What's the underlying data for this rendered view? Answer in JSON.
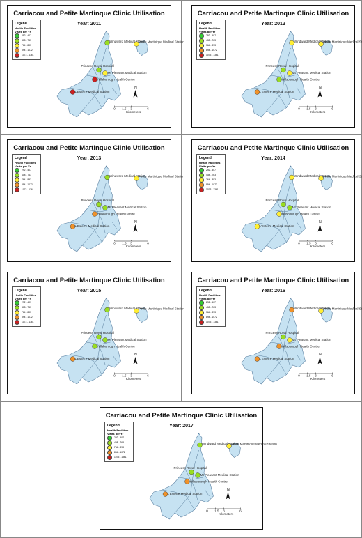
{
  "title": "Carriacou and Petite Martinque Clinic Utilisation",
  "year_prefix": "Year: ",
  "legend": {
    "heading": "Legend",
    "subheading": "Health Facilities",
    "variable": "Visits per Yr",
    "classes": [
      {
        "label": "292 - 407",
        "color": "#33cc33"
      },
      {
        "label": "408 - 763",
        "color": "#99dd22"
      },
      {
        "label": "764 - 893",
        "color": "#ffee33"
      },
      {
        "label": "894 - 1072",
        "color": "#f0922a"
      },
      {
        "label": "1073 - 1361",
        "color": "#cc2020"
      }
    ]
  },
  "scale_bar": {
    "ticks": [
      "0",
      "1.5",
      "3",
      "6"
    ],
    "unit": "Kilometers"
  },
  "north_label": "N",
  "facility_names": [
    "Windward Medical Station",
    "Petite Martinique Medical Station",
    "Princess Royal Hospital",
    "Mt Pleasant Medical Station",
    "Hillsborough Health Centre",
    "L'Esterre Medical Station"
  ],
  "maps": [
    {
      "year": "2011",
      "class_index": [
        1,
        2,
        1,
        2,
        4,
        4
      ]
    },
    {
      "year": "2012",
      "class_index": [
        2,
        2,
        1,
        2,
        1,
        3
      ]
    },
    {
      "year": "2013",
      "class_index": [
        1,
        2,
        1,
        1,
        3,
        3
      ]
    },
    {
      "year": "2014",
      "class_index": [
        2,
        2,
        1,
        1,
        2,
        2
      ]
    },
    {
      "year": "2015",
      "class_index": [
        1,
        2,
        1,
        1,
        1,
        3
      ]
    },
    {
      "year": "2016",
      "class_index": [
        3,
        2,
        1,
        2,
        3,
        3
      ]
    },
    {
      "year": "2017",
      "class_index": [
        1,
        2,
        1,
        1,
        3,
        3
      ]
    }
  ]
}
